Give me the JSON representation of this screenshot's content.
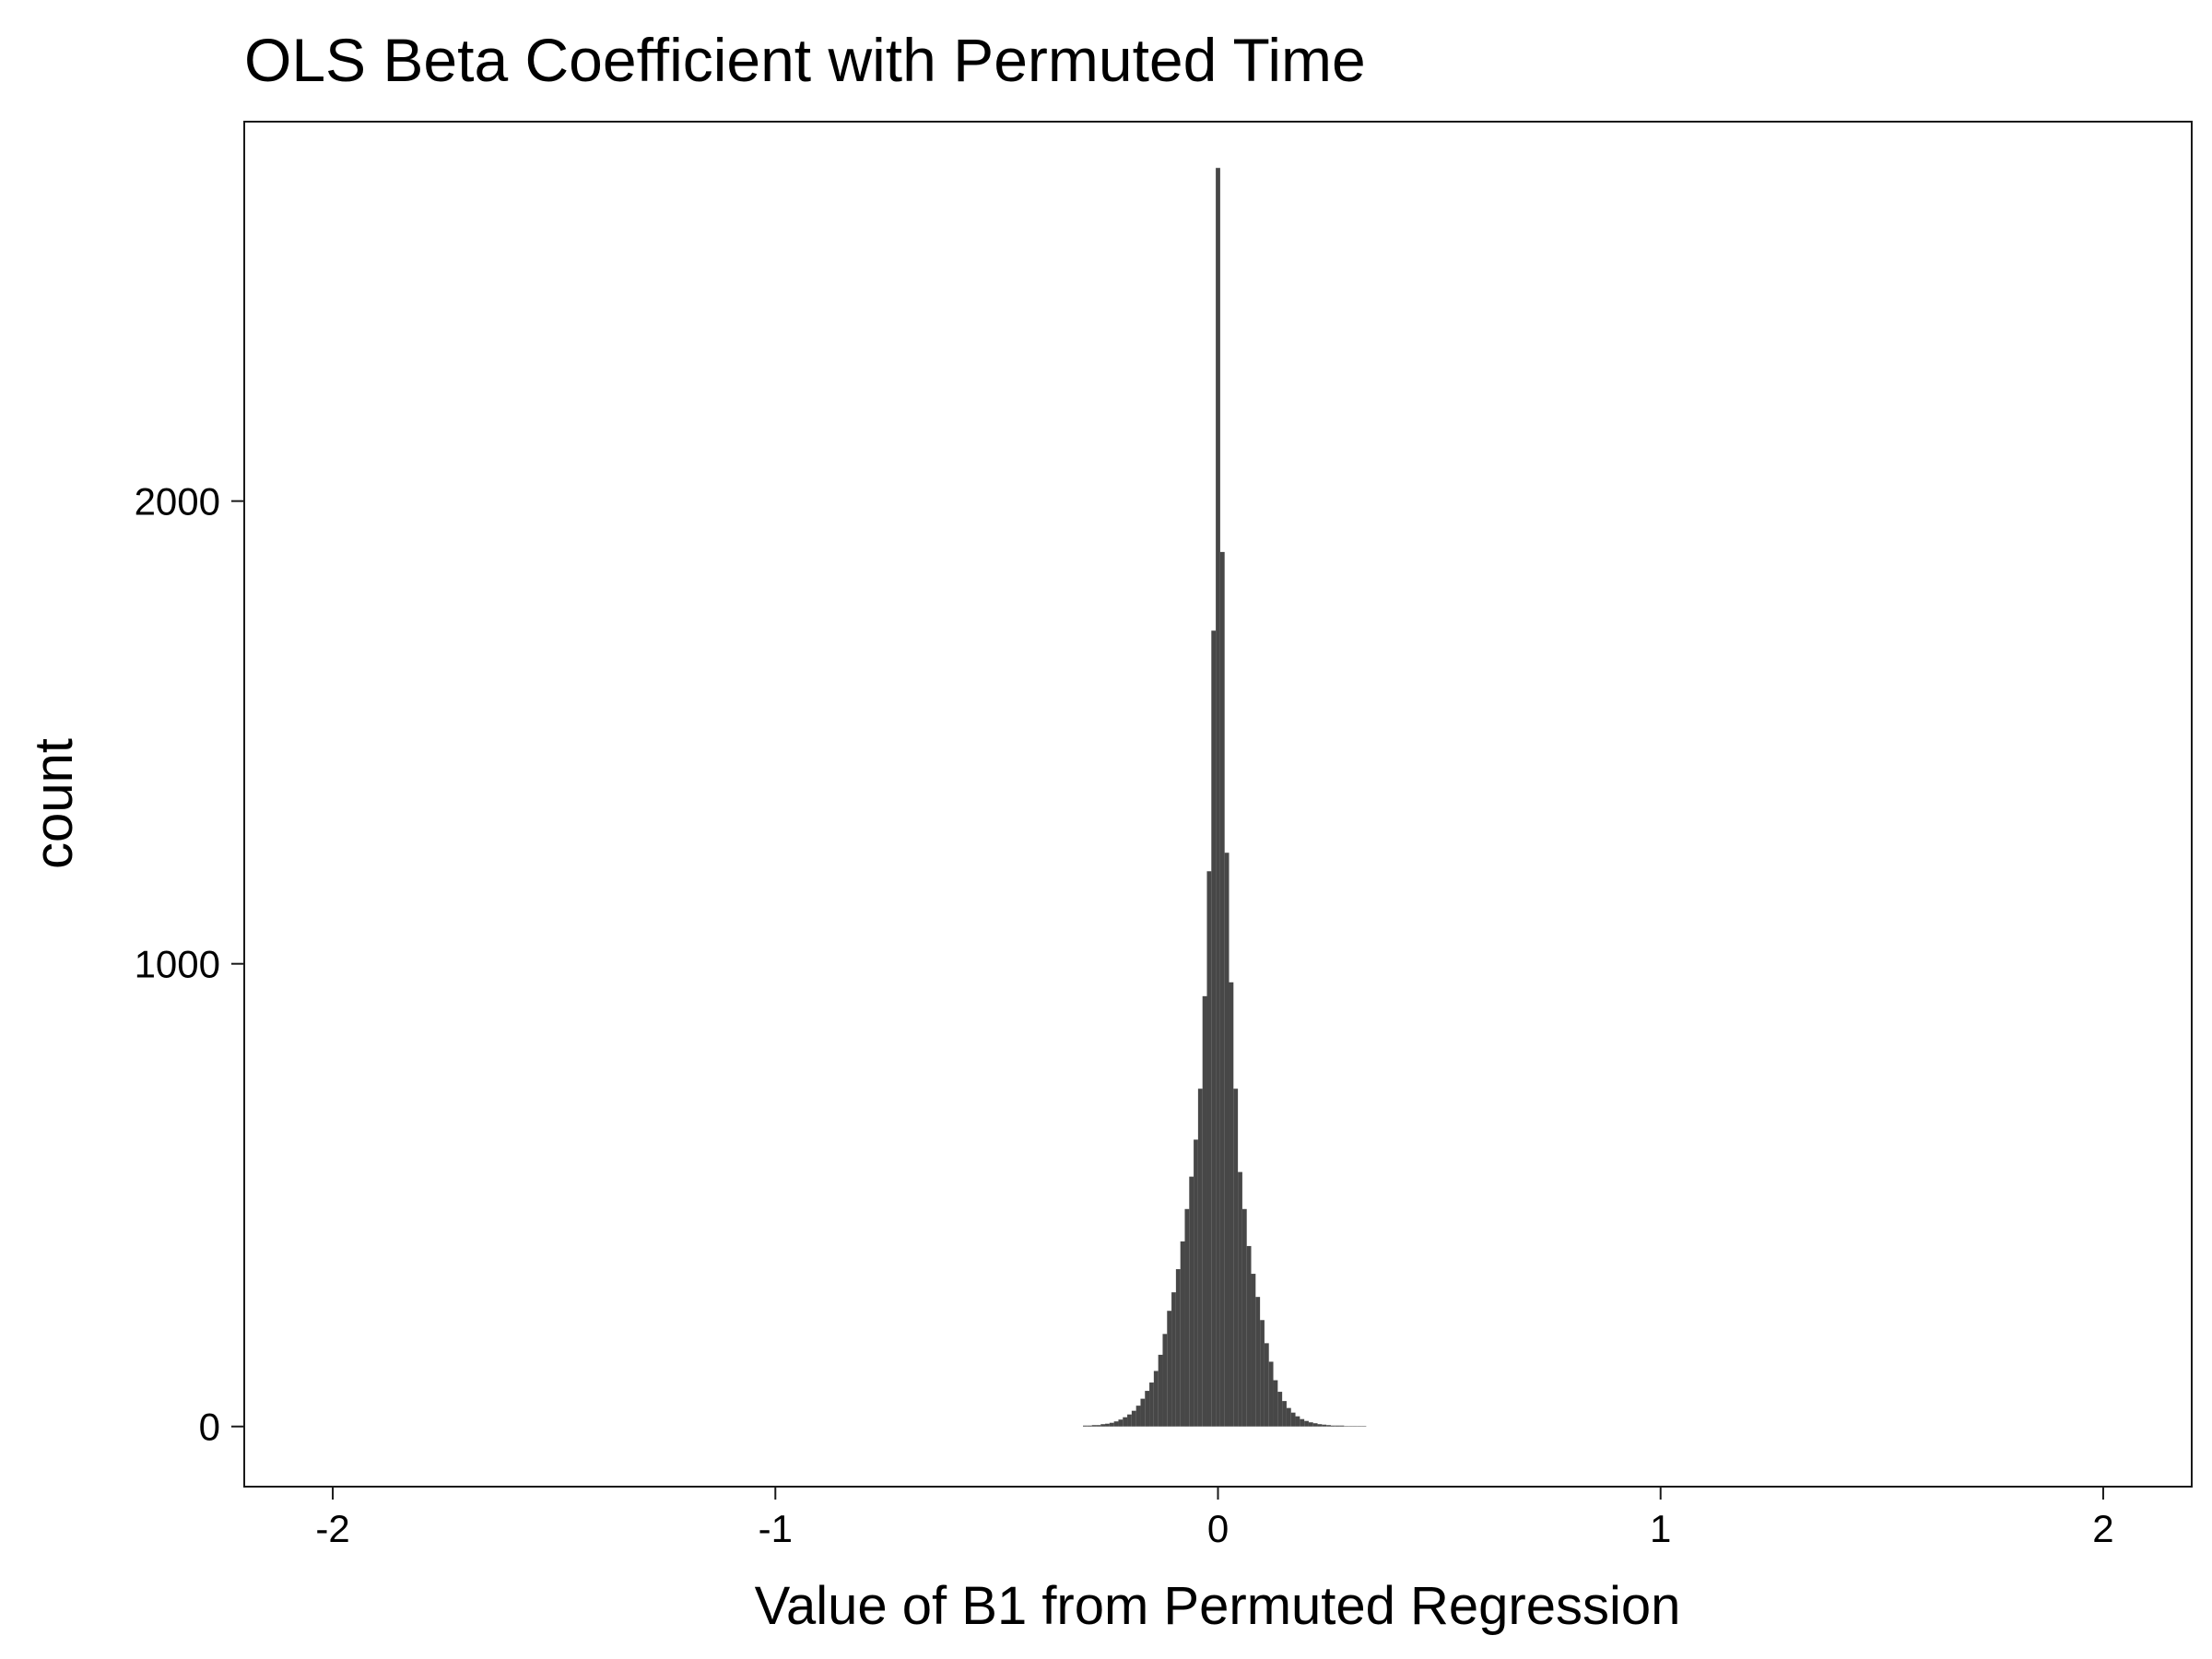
{
  "chart_data": {
    "type": "bar",
    "title": "OLS Beta Coefficient with Permuted Time",
    "xlabel": "Value of B1 from Permuted Regression",
    "ylabel": "count",
    "xlim": [
      -2.2,
      2.2
    ],
    "ylim": [
      -130,
      2820
    ],
    "x_ticks": [
      -2,
      -1,
      0,
      1,
      2
    ],
    "x_tick_labels": [
      "-2",
      "-1",
      "0",
      "1",
      "2"
    ],
    "y_ticks": [
      0,
      1000,
      2000
    ],
    "y_tick_labels": [
      "0",
      "1000",
      "2000"
    ],
    "grid": false,
    "bar_color": "#474747",
    "bin_width": 0.01,
    "bins": [
      {
        "x": -0.3,
        "count": 2
      },
      {
        "x": -0.29,
        "count": 2
      },
      {
        "x": -0.28,
        "count": 3
      },
      {
        "x": -0.27,
        "count": 3
      },
      {
        "x": -0.26,
        "count": 5
      },
      {
        "x": -0.25,
        "count": 6
      },
      {
        "x": -0.24,
        "count": 8
      },
      {
        "x": -0.23,
        "count": 11
      },
      {
        "x": -0.22,
        "count": 15
      },
      {
        "x": -0.21,
        "count": 20
      },
      {
        "x": -0.2,
        "count": 26
      },
      {
        "x": -0.19,
        "count": 34
      },
      {
        "x": -0.18,
        "count": 45
      },
      {
        "x": -0.17,
        "count": 60
      },
      {
        "x": -0.16,
        "count": 77
      },
      {
        "x": -0.15,
        "count": 95
      },
      {
        "x": -0.14,
        "count": 120
      },
      {
        "x": -0.13,
        "count": 155
      },
      {
        "x": -0.12,
        "count": 200
      },
      {
        "x": -0.11,
        "count": 250
      },
      {
        "x": -0.1,
        "count": 290
      },
      {
        "x": -0.09,
        "count": 340
      },
      {
        "x": -0.08,
        "count": 400
      },
      {
        "x": -0.07,
        "count": 470
      },
      {
        "x": -0.06,
        "count": 540
      },
      {
        "x": -0.05,
        "count": 620
      },
      {
        "x": -0.04,
        "count": 730
      },
      {
        "x": -0.03,
        "count": 930
      },
      {
        "x": -0.02,
        "count": 1200
      },
      {
        "x": -0.01,
        "count": 1720
      },
      {
        "x": 0.0,
        "count": 2720
      },
      {
        "x": 0.01,
        "count": 1890
      },
      {
        "x": 0.02,
        "count": 1240
      },
      {
        "x": 0.03,
        "count": 960
      },
      {
        "x": 0.04,
        "count": 730
      },
      {
        "x": 0.05,
        "count": 550
      },
      {
        "x": 0.06,
        "count": 470
      },
      {
        "x": 0.07,
        "count": 390
      },
      {
        "x": 0.08,
        "count": 330
      },
      {
        "x": 0.09,
        "count": 280
      },
      {
        "x": 0.1,
        "count": 230
      },
      {
        "x": 0.11,
        "count": 180
      },
      {
        "x": 0.12,
        "count": 140
      },
      {
        "x": 0.13,
        "count": 100
      },
      {
        "x": 0.14,
        "count": 75
      },
      {
        "x": 0.15,
        "count": 55
      },
      {
        "x": 0.16,
        "count": 40
      },
      {
        "x": 0.17,
        "count": 30
      },
      {
        "x": 0.18,
        "count": 22
      },
      {
        "x": 0.19,
        "count": 16
      },
      {
        "x": 0.2,
        "count": 12
      },
      {
        "x": 0.21,
        "count": 9
      },
      {
        "x": 0.22,
        "count": 7
      },
      {
        "x": 0.23,
        "count": 5
      },
      {
        "x": 0.24,
        "count": 4
      },
      {
        "x": 0.25,
        "count": 3
      },
      {
        "x": 0.26,
        "count": 2
      },
      {
        "x": 0.27,
        "count": 2
      },
      {
        "x": 0.28,
        "count": 2
      },
      {
        "x": 0.29,
        "count": 1
      },
      {
        "x": 0.3,
        "count": 1
      },
      {
        "x": 0.31,
        "count": 1
      },
      {
        "x": 0.32,
        "count": 1
      },
      {
        "x": 0.33,
        "count": 1
      }
    ]
  }
}
